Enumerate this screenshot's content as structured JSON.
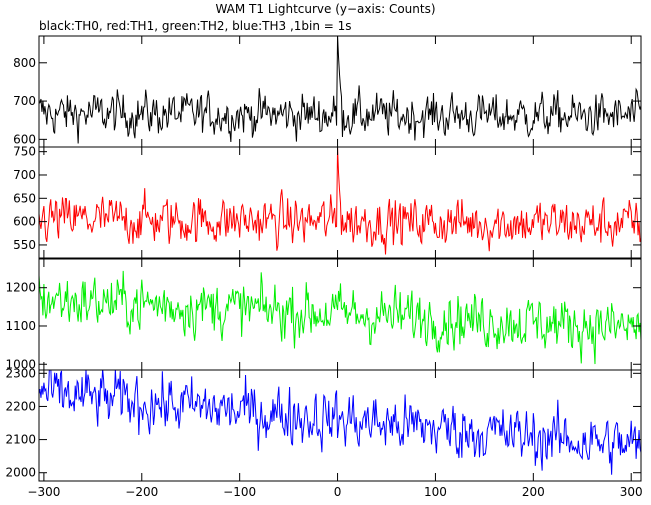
{
  "chart_data": {
    "type": "line",
    "title": "WAM T1 Lightcurve (y−axis: Counts)",
    "subtitle": "black:TH0, red:TH1, green:TH2, blue:TH3 ,1bin = 1s",
    "xlim": [
      -305,
      310
    ],
    "x_ticks": [
      -300,
      -200,
      -100,
      0,
      100,
      200,
      300
    ],
    "x_tick_labels": [
      "−300",
      "−200",
      "−100",
      "0",
      "100",
      "200",
      "300"
    ],
    "bin_seconds": 1,
    "panels": [
      {
        "name": "TH0",
        "color": "#000000",
        "ylim": [
          580,
          870
        ],
        "y_ticks": [
          600,
          700,
          800
        ],
        "y_tick_labels": [
          "600",
          "700",
          "800"
        ],
        "baseline_start": 668,
        "baseline_end": 660,
        "noise": 26,
        "peak": [
          {
            "x": 0,
            "y": 870
          },
          {
            "x": 1,
            "y": 815
          },
          {
            "x": 2,
            "y": 770
          },
          {
            "x": 3,
            "y": 735
          },
          {
            "x": 4,
            "y": 712
          }
        ]
      },
      {
        "name": "TH1",
        "color": "#ff0000",
        "ylim": [
          522,
          760
        ],
        "y_ticks": [
          550,
          600,
          650,
          700,
          750
        ],
        "y_tick_labels": [
          "550",
          "600",
          "650",
          "700",
          "750"
        ],
        "baseline_start": 605,
        "baseline_end": 595,
        "noise": 24,
        "peak": [
          {
            "x": 0,
            "y": 758
          },
          {
            "x": 1,
            "y": 705
          },
          {
            "x": 2,
            "y": 668
          },
          {
            "x": 3,
            "y": 640
          }
        ]
      },
      {
        "name": "TH2",
        "color": "#00ee00",
        "ylim": [
          985,
          1275
        ],
        "y_ticks": [
          1000,
          1100,
          1200
        ],
        "y_tick_labels": [
          "1000",
          "1100",
          "1200"
        ],
        "baseline_start": 1170,
        "baseline_end": 1095,
        "noise": 33,
        "peak": []
      },
      {
        "name": "TH3",
        "color": "#0000ff",
        "ylim": [
          1975,
          2310
        ],
        "y_ticks": [
          2000,
          2100,
          2200,
          2300
        ],
        "y_tick_labels": [
          "2000",
          "2100",
          "2200",
          "2300"
        ],
        "baseline_start": 2240,
        "baseline_end": 2080,
        "noise": 40,
        "peak": []
      }
    ]
  }
}
